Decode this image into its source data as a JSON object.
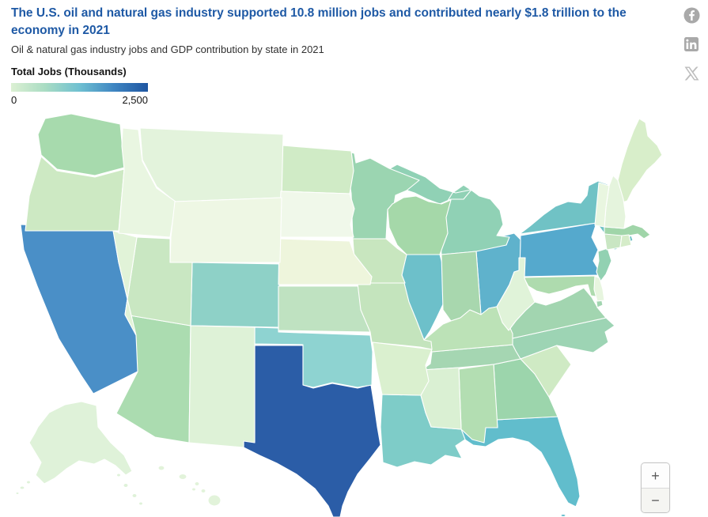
{
  "header": {
    "title": "The U.S. oil and natural gas industry supported 10.8 million jobs and contributed nearly $1.8 trillion to the economy in 2021",
    "subtitle": "Oil & natural gas industry jobs and GDP contribution by state in 2021"
  },
  "legend": {
    "title": "Total Jobs (Thousands)",
    "min_label": "0",
    "max_label": "2,500",
    "gradient_stops": [
      "#dcf0d3",
      "#a9dcc3",
      "#6fc0d1",
      "#3f86c2",
      "#1e55a1"
    ]
  },
  "share": {
    "facebook_label": "Share on Facebook",
    "linkedin_label": "Share on LinkedIn",
    "x_label": "Share on X",
    "icon_color": "#a9a9a9"
  },
  "controls": {
    "zoom_in": "+",
    "zoom_out": "−"
  },
  "chart_data": {
    "type": "heatmap",
    "subtype": "us-state-choropleth",
    "title": "The U.S. oil and natural gas industry supported 10.8 million jobs and contributed nearly $1.8 trillion to the economy in 2021",
    "subtitle": "Oil & natural gas industry jobs and GDP contribution by state in 2021",
    "legend_title": "Total Jobs (Thousands)",
    "scale": {
      "min": 0,
      "max": 2500,
      "min_label": "0",
      "max_label": "2,500",
      "unit": "thousand jobs",
      "colormap": "light-green to teal to dark blue"
    },
    "states": [
      {
        "abbr": "TX",
        "name": "Texas",
        "fill": "#2b5da7",
        "value_est_thousands": 2500
      },
      {
        "abbr": "CA",
        "name": "California",
        "fill": "#4a8fc7",
        "value_est_thousands": 1700
      },
      {
        "abbr": "PA",
        "name": "Pennsylvania",
        "fill": "#55a9cd",
        "value_est_thousands": 1250
      },
      {
        "abbr": "OH",
        "name": "Ohio",
        "fill": "#5fb2cc",
        "value_est_thousands": 1050
      },
      {
        "abbr": "FL",
        "name": "Florida",
        "fill": "#61bdcc",
        "value_est_thousands": 1000
      },
      {
        "abbr": "IL",
        "name": "Illinois",
        "fill": "#6dc0ca",
        "value_est_thousands": 950
      },
      {
        "abbr": "NY",
        "name": "New York",
        "fill": "#70c2c5",
        "value_est_thousands": 900
      },
      {
        "abbr": "LA",
        "name": "Louisiana",
        "fill": "#7eccc8",
        "value_est_thousands": 700
      },
      {
        "abbr": "OK",
        "name": "Oklahoma",
        "fill": "#8ed3d1",
        "value_est_thousands": 620
      },
      {
        "abbr": "CO",
        "name": "Colorado",
        "fill": "#8ed1c7",
        "value_est_thousands": 580
      },
      {
        "abbr": "NC",
        "name": "North Carolina",
        "fill": "#9dd4b4",
        "value_est_thousands": 420
      },
      {
        "abbr": "GA",
        "name": "Georgia",
        "fill": "#9cd5ac",
        "value_est_thousands": 420
      },
      {
        "abbr": "MI",
        "name": "Michigan",
        "fill": "#90d1b5",
        "value_est_thousands": 420
      },
      {
        "abbr": "NJ",
        "name": "New Jersey",
        "fill": "#92d1b2",
        "value_est_thousands": 420
      },
      {
        "abbr": "MN",
        "name": "Minnesota",
        "fill": "#9bd5b1",
        "value_est_thousands": 400
      },
      {
        "abbr": "VA",
        "name": "Virginia",
        "fill": "#a2d5b0",
        "value_est_thousands": 380
      },
      {
        "abbr": "WA",
        "name": "Washington",
        "fill": "#a7daad",
        "value_est_thousands": 360
      },
      {
        "abbr": "TN",
        "name": "Tennessee",
        "fill": "#a5d6b2",
        "value_est_thousands": 350
      },
      {
        "abbr": "MA",
        "name": "Massachusetts",
        "fill": "#a0d5a9",
        "value_est_thousands": 350
      },
      {
        "abbr": "IN",
        "name": "Indiana",
        "fill": "#a8d7ae",
        "value_est_thousands": 340
      },
      {
        "abbr": "WI",
        "name": "Wisconsin",
        "fill": "#a5d8a9",
        "value_est_thousands": 330
      },
      {
        "abbr": "AZ",
        "name": "Arizona",
        "fill": "#abdcb0",
        "value_est_thousands": 330
      },
      {
        "abbr": "MD",
        "name": "Maryland",
        "fill": "#aedbae",
        "value_est_thousands": 300
      },
      {
        "abbr": "AL",
        "name": "Alabama",
        "fill": "#b3deb2",
        "value_est_thousands": 280
      },
      {
        "abbr": "KY",
        "name": "Kentucky",
        "fill": "#bce2b7",
        "value_est_thousands": 260
      },
      {
        "abbr": "KS",
        "name": "Kansas",
        "fill": "#bfe2c1",
        "value_est_thousands": 250
      },
      {
        "abbr": "MO",
        "name": "Missouri",
        "fill": "#c4e4bd",
        "value_est_thousands": 240
      },
      {
        "abbr": "UT",
        "name": "Utah",
        "fill": "#c9e7c2",
        "value_est_thousands": 210
      },
      {
        "abbr": "IA",
        "name": "Iowa",
        "fill": "#c8e6bf",
        "value_est_thousands": 200
      },
      {
        "abbr": "CT",
        "name": "Connecticut",
        "fill": "#c9e6c3",
        "value_est_thousands": 200
      },
      {
        "abbr": "OR",
        "name": "Oregon",
        "fill": "#cde9c3",
        "value_est_thousands": 190
      },
      {
        "abbr": "SC",
        "name": "South Carolina",
        "fill": "#cfeac4",
        "value_est_thousands": 170
      },
      {
        "abbr": "ND",
        "name": "North Dakota",
        "fill": "#d0ebc6",
        "value_est_thousands": 160
      },
      {
        "abbr": "ME",
        "name": "Maine",
        "fill": "#d8eeca",
        "value_est_thousands": 130
      },
      {
        "abbr": "RI",
        "name": "Rhode Island",
        "fill": "#d5ecc9",
        "value_est_thousands": 120
      },
      {
        "abbr": "MS",
        "name": "Mississippi",
        "fill": "#daf0d3",
        "value_est_thousands": 100
      },
      {
        "abbr": "AR",
        "name": "Arkansas",
        "fill": "#daf0cf",
        "value_est_thousands": 100
      },
      {
        "abbr": "NM",
        "name": "New Mexico",
        "fill": "#def2d7",
        "value_est_thousands": 100
      },
      {
        "abbr": "NV",
        "name": "Nevada",
        "fill": "#e1f3d8",
        "value_est_thousands": 90
      },
      {
        "abbr": "MT",
        "name": "Montana",
        "fill": "#e3f3dc",
        "value_est_thousands": 80
      },
      {
        "abbr": "HI",
        "name": "Hawaii",
        "fill": "#e2f3da",
        "value_est_thousands": 70
      },
      {
        "abbr": "AK",
        "name": "Alaska",
        "fill": "#dff2d9",
        "value_est_thousands": 70
      },
      {
        "abbr": "WV",
        "name": "West Virginia",
        "fill": "#e0f3d9",
        "value_est_thousands": 70
      },
      {
        "abbr": "ID",
        "name": "Idaho",
        "fill": "#e9f6e1",
        "value_est_thousands": 60
      },
      {
        "abbr": "DE",
        "name": "Delaware",
        "fill": "#e7f5df",
        "value_est_thousands": 50
      },
      {
        "abbr": "NH",
        "name": "New Hampshire",
        "fill": "#e5f4dd",
        "value_est_thousands": 50
      },
      {
        "abbr": "VT",
        "name": "Vermont",
        "fill": "#e9f6e0",
        "value_est_thousands": 40
      },
      {
        "abbr": "NE",
        "name": "Nebraska",
        "fill": "#eef5dc",
        "value_est_thousands": 40
      },
      {
        "abbr": "SD",
        "name": "South Dakota",
        "fill": "#f0f8ea",
        "value_est_thousands": 25
      },
      {
        "abbr": "WY",
        "name": "Wyoming",
        "fill": "#eef7e4",
        "value_est_thousands": 25
      }
    ]
  }
}
